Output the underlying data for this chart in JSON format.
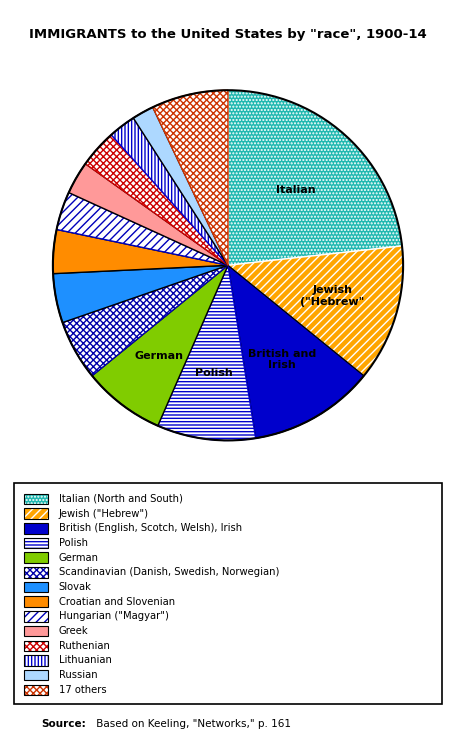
{
  "title": "IMMIGRANTS to the United States by \"race\", 1900-14",
  "source_bold": "Source:",
  "source_rest": " Based on Keeling, \"Networks,\" p. 161",
  "slices": [
    {
      "label": "Italian (North and South)",
      "label_pie": "Italian",
      "value": 23.0,
      "facecolor": "#20B8B0",
      "hatch": ".....",
      "hatch_color": "#ffffff"
    },
    {
      "label": "Jewish (\"Hebrew\")",
      "label_pie": "Jewish\n(\"Hebrew\"",
      "value": 12.5,
      "facecolor": "#FFA500",
      "hatch": "////",
      "hatch_color": "#ffffff"
    },
    {
      "label": "British (English, Scotch, Welsh), Irish",
      "label_pie": "British and\nIrish",
      "value": 11.5,
      "facecolor": "#0000CC",
      "hatch": "",
      "hatch_color": "#0000CC"
    },
    {
      "label": "Polish",
      "label_pie": "Polish",
      "value": 9.0,
      "facecolor": "#ffffff",
      "hatch": "-----",
      "hatch_color": "#0000CC"
    },
    {
      "label": "German",
      "label_pie": "German",
      "value": 7.5,
      "facecolor": "#80CC00",
      "hatch": "",
      "hatch_color": "#80CC00"
    },
    {
      "label": "Scandinavian (Danish, Swedish, Norwegian)",
      "label_pie": "",
      "value": 5.5,
      "facecolor": "#ffffff",
      "hatch": "xxxxx",
      "hatch_color": "#0000AA"
    },
    {
      "label": "Slovak",
      "label_pie": "",
      "value": 4.5,
      "facecolor": "#1E90FF",
      "hatch": "",
      "hatch_color": "#1E90FF"
    },
    {
      "label": "Croatian and Slovenian",
      "label_pie": "",
      "value": 4.0,
      "facecolor": "#FF8C00",
      "hatch": "",
      "hatch_color": "#FF8C00"
    },
    {
      "label": "Hungarian (\"Magyar\")",
      "label_pie": "",
      "value": 3.5,
      "facecolor": "#ffffff",
      "hatch": "////",
      "hatch_color": "#0000BB"
    },
    {
      "label": "Greek",
      "label_pie": "",
      "value": 3.0,
      "facecolor": "#FF9999",
      "hatch": "",
      "hatch_color": "#FF9999"
    },
    {
      "label": "Ruthenian",
      "label_pie": "",
      "value": 3.5,
      "facecolor": "#ffffff",
      "hatch": "xxxxx",
      "hatch_color": "#CC0000"
    },
    {
      "label": "Lithuanian",
      "label_pie": "",
      "value": 2.5,
      "facecolor": "#ffffff",
      "hatch": "|||||",
      "hatch_color": "#0000CC"
    },
    {
      "label": "Russian",
      "label_pie": "",
      "value": 2.0,
      "facecolor": "#ADD8FF",
      "hatch": "",
      "hatch_color": "#ADD8FF"
    },
    {
      "label": "17 others",
      "label_pie": "",
      "value": 7.0,
      "facecolor": "#ffffff",
      "hatch": "xxxxx",
      "hatch_color": "#CC3300"
    }
  ]
}
